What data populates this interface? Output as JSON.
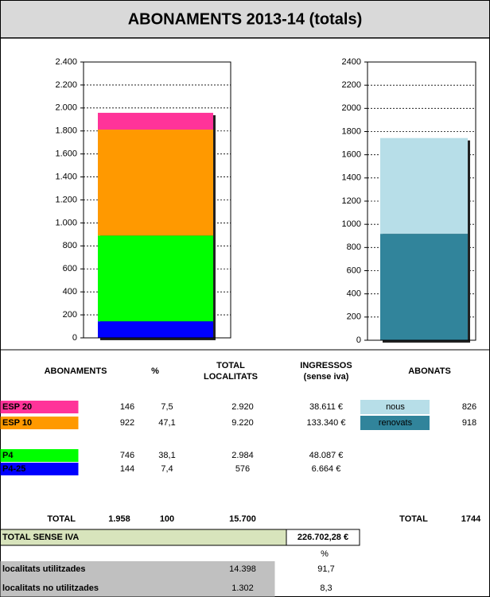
{
  "title": "ABONAMENTS 2013-14 (totals)",
  "chart_data": [
    {
      "type": "stacked_bar",
      "categories": [
        null
      ],
      "series": [
        {
          "color": "#0000ff",
          "values": [
            144
          ]
        },
        {
          "color": "#00ff00",
          "values": [
            746
          ]
        },
        {
          "color": "#ff9900",
          "values": [
            922
          ]
        },
        {
          "color": "#ff3399",
          "values": [
            146
          ]
        }
      ],
      "ylim": [
        0,
        2400
      ],
      "yticks": [
        0,
        200,
        400,
        600,
        800,
        {
          "value": 1000,
          "label": "1.000"
        },
        {
          "value": 1200,
          "label": "1.200"
        },
        {
          "value": 1400,
          "label": "1.400"
        },
        {
          "value": 1600,
          "label": "1.600"
        },
        {
          "value": 1800,
          "label": "1.800"
        },
        {
          "value": 2000,
          "label": "2.000"
        },
        {
          "value": 2200,
          "label": "2.200"
        },
        {
          "value": 2400,
          "label": "2.400"
        }
      ],
      "grid": true
    },
    {
      "type": "stacked_bar",
      "categories": [
        null
      ],
      "series": [
        {
          "color": "#31849b",
          "values": [
            918
          ]
        },
        {
          "color": "#b7dee8",
          "values": [
            826
          ]
        }
      ],
      "ylim": [
        0,
        2400
      ],
      "yticks": [
        0,
        200,
        400,
        600,
        800,
        1000,
        1200,
        1400,
        1600,
        1800,
        2000,
        2200,
        2400
      ],
      "grid": true
    }
  ],
  "table": {
    "headers": [
      [
        "ABONAMENTS"
      ],
      [
        "%"
      ],
      [
        "TOTAL",
        "LOCALITATS"
      ],
      [
        "INGRESSOS",
        "(sense iva)"
      ],
      [
        "ABONATS"
      ]
    ],
    "rows": [
      [
        "ESP 20",
        "146",
        "7,5",
        "2.920",
        "38.611 €"
      ],
      [
        "ESP 10",
        "922",
        "47,1",
        "9.220",
        "133.340 €"
      ],
      [
        "P4",
        "746",
        "38,1",
        "2.984",
        "48.087 €"
      ],
      [
        "P4-25",
        "144",
        "7,4",
        "576",
        "6.664 €"
      ]
    ],
    "abonats": [
      [
        "nous",
        "826"
      ],
      [
        "renovats",
        "918"
      ]
    ],
    "total": [
      "TOTAL",
      "1.958",
      "100",
      "15.700"
    ],
    "abonats_total": [
      "TOTAL",
      "1744"
    ],
    "sense_iva": [
      "TOTAL SENSE IVA",
      "226.702,28 €"
    ],
    "pct_header": "%",
    "localitats": [
      [
        "localitats utilitzades",
        "14.398",
        "91,7"
      ],
      [
        "localitats no utilitzades",
        "1.302",
        "8,3"
      ]
    ]
  }
}
